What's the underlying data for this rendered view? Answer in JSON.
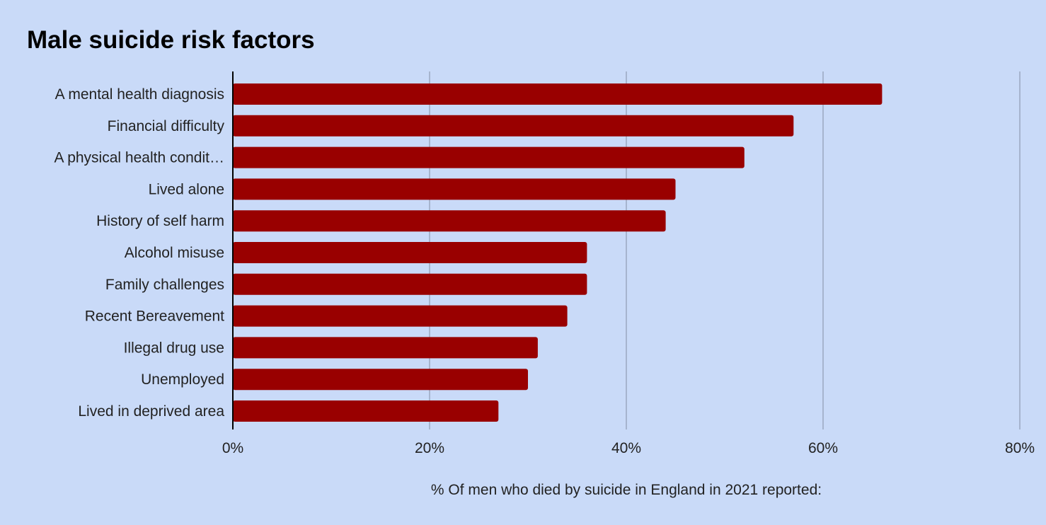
{
  "chart_data": {
    "type": "bar",
    "orientation": "horizontal",
    "title": "Male suicide risk factors",
    "xlabel": "% Of men who died by suicide in England in 2021 reported:",
    "ylabel": "",
    "categories": [
      "A mental health diagnosis",
      "Financial difficulty",
      "A physical health condit…",
      "Lived alone",
      "History of self harm",
      "Alcohol misuse",
      "Family challenges",
      "Recent Bereavement",
      "Illegal drug use",
      "Unemployed",
      "Lived in deprived area"
    ],
    "values": [
      66,
      57,
      52,
      45,
      44,
      36,
      36,
      34,
      31,
      30,
      27
    ],
    "unit": "%",
    "xlim": [
      0,
      80
    ],
    "ticks": [
      0,
      20,
      40,
      60,
      80
    ],
    "tick_labels": [
      "0%",
      "20%",
      "40%",
      "60%",
      "80%"
    ],
    "grid": true,
    "legend": "none",
    "colors": {
      "bar": "#990000",
      "background": "#c9daf8",
      "grid": "#9aa8c0",
      "axis": "#000000",
      "text": "#222222",
      "title": "#000000"
    }
  }
}
